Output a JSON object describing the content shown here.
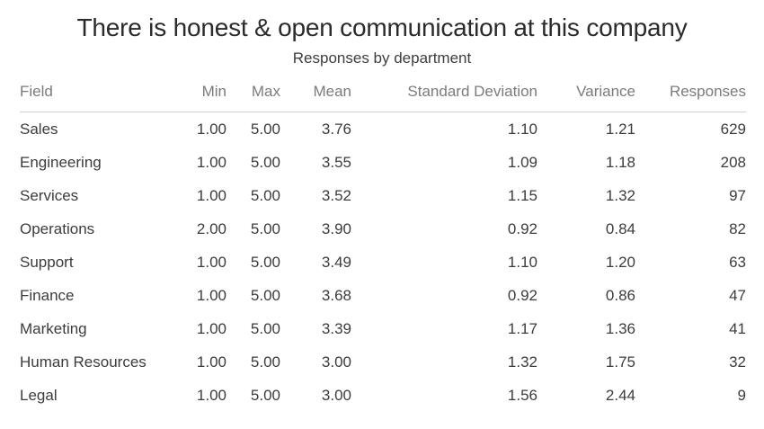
{
  "title": "There is honest & open communication at this company",
  "subtitle": "Responses by department",
  "chart_data": {
    "type": "table",
    "title": "There is honest & open communication at this company",
    "subtitle": "Responses by department",
    "columns": [
      "Field",
      "Min",
      "Max",
      "Mean",
      "Standard Deviation",
      "Variance",
      "Responses"
    ],
    "rows": [
      [
        "Sales",
        "1.00",
        "5.00",
        "3.76",
        "1.10",
        "1.21",
        "629"
      ],
      [
        "Engineering",
        "1.00",
        "5.00",
        "3.55",
        "1.09",
        "1.18",
        "208"
      ],
      [
        "Services",
        "1.00",
        "5.00",
        "3.52",
        "1.15",
        "1.32",
        "97"
      ],
      [
        "Operations",
        "2.00",
        "5.00",
        "3.90",
        "0.92",
        "0.84",
        "82"
      ],
      [
        "Support",
        "1.00",
        "5.00",
        "3.49",
        "1.10",
        "1.20",
        "63"
      ],
      [
        "Finance",
        "1.00",
        "5.00",
        "3.68",
        "0.92",
        "0.86",
        "47"
      ],
      [
        "Marketing",
        "1.00",
        "5.00",
        "3.39",
        "1.17",
        "1.36",
        "41"
      ],
      [
        "Human Resources",
        "1.00",
        "5.00",
        "3.00",
        "1.32",
        "1.75",
        "32"
      ],
      [
        "Legal",
        "1.00",
        "5.00",
        "3.00",
        "1.56",
        "2.44",
        "9"
      ]
    ]
  },
  "colors": {
    "title_text": "#2b2b2b",
    "subtitle_text": "#3d3d3d",
    "header_text": "#7b7b7b",
    "body_text": "#3c3c3c",
    "header_rule": "#cfcfcf",
    "background": "#ffffff"
  }
}
